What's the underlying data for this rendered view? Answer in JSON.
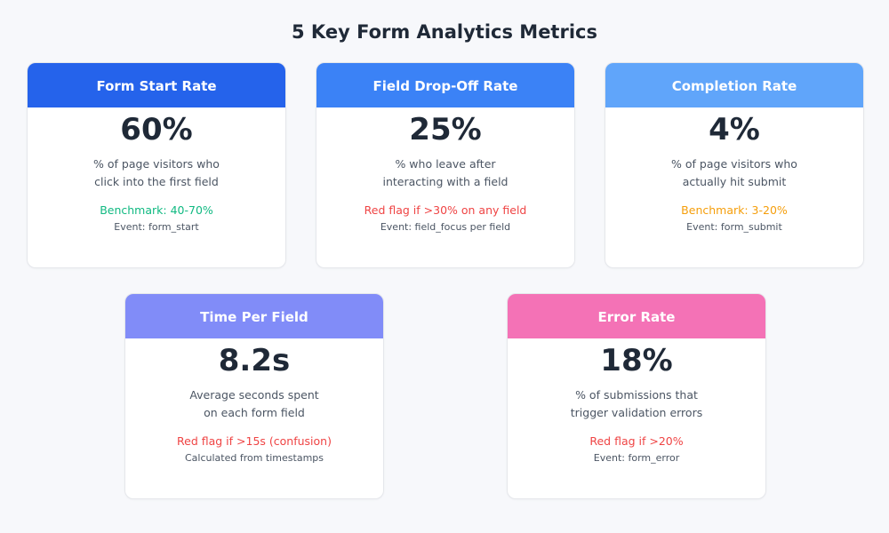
{
  "title": "5 Key Form Analytics Metrics",
  "cards": [
    {
      "header": "Form Start Rate",
      "value": "60%",
      "desc_line1": "% of page visitors who",
      "desc_line2": "click into the first field",
      "flag": "Benchmark: 40-70%",
      "event": "Event: form_start"
    },
    {
      "header": "Field Drop-Off Rate",
      "value": "25%",
      "desc_line1": "% who leave after",
      "desc_line2": "interacting with a field",
      "flag": "Red flag if >30% on any field",
      "event": "Event: field_focus per field"
    },
    {
      "header": "Completion Rate",
      "value": "4%",
      "desc_line1": "% of page visitors who",
      "desc_line2": "actually hit submit",
      "flag": "Benchmark: 3-20%",
      "event": "Event: form_submit"
    },
    {
      "header": "Time Per Field",
      "value": "8.2s",
      "desc_line1": "Average seconds spent",
      "desc_line2": "on each form field",
      "flag": "Red flag if >15s (confusion)",
      "event": "Calculated from timestamps"
    },
    {
      "header": "Error Rate",
      "value": "18%",
      "desc_line1": "% of submissions that",
      "desc_line2": "trigger validation errors",
      "flag": "Red flag if >20%",
      "event": "Event: form_error"
    }
  ],
  "colors": {
    "header_1": "#2563eb",
    "header_2": "#3b82f6",
    "header_3": "#60a5fa",
    "header_4": "#818cf8",
    "header_5": "#f472b6",
    "benchmark_green": "#10b981",
    "red_flag": "#ef4444",
    "benchmark_orange": "#f59e0b"
  }
}
